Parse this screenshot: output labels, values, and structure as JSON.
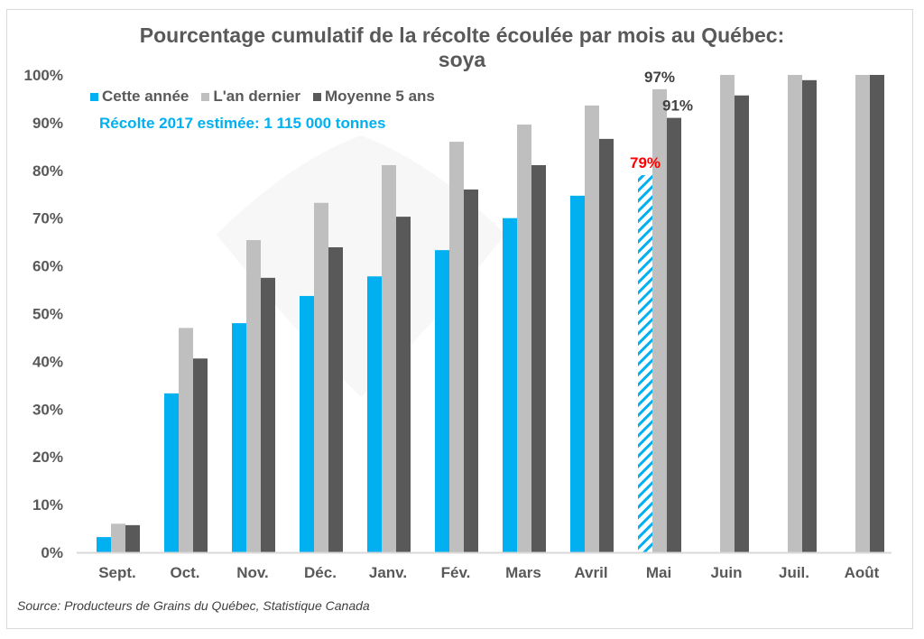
{
  "chart_data": {
    "type": "bar",
    "title": "Pourcentage cumulatif de la récolte écoulée par mois au Québec:",
    "subtitle": "soya",
    "xlabel": "",
    "ylabel": "",
    "ylim": [
      0,
      100
    ],
    "yticks": [
      "0%",
      "10%",
      "20%",
      "30%",
      "40%",
      "50%",
      "60%",
      "70%",
      "80%",
      "90%",
      "100%"
    ],
    "grid": false,
    "legend_position": "top-left",
    "categories": [
      "Sept.",
      "Oct.",
      "Nov.",
      "Déc.",
      "Janv.",
      "Fév.",
      "Mars",
      "Avril",
      "Mai",
      "Juin",
      "Juil.",
      "Août"
    ],
    "series": [
      {
        "name": "Cette année",
        "color": "#00b0f0",
        "values": [
          3.2,
          33.3,
          48,
          53.7,
          57.8,
          63.3,
          70,
          74.7,
          79,
          null,
          null,
          null
        ],
        "hatched_index": 8
      },
      {
        "name": "L'an dernier",
        "color": "#bfbfbf",
        "values": [
          6,
          47,
          65.4,
          73.2,
          81.1,
          86,
          89.6,
          93.6,
          97,
          100,
          100,
          100
        ]
      },
      {
        "name": "Moyenne 5 ans",
        "color": "#595959",
        "values": [
          5.7,
          40.6,
          57.5,
          63.9,
          70.3,
          76,
          81.1,
          86.6,
          91,
          95.7,
          98.9,
          100
        ]
      }
    ],
    "annotations": [
      {
        "text": "79%",
        "category": "Mai",
        "series": "Cette année",
        "color": "#ff0000"
      },
      {
        "text": "97%",
        "category": "Mai",
        "series": "L'an dernier",
        "color": "#404040"
      },
      {
        "text": "91%",
        "category": "Mai",
        "series": "Moyenne 5 ans",
        "color": "#404040"
      }
    ],
    "note": "Récolte 2017 estimée: 1 115 000 tonnes",
    "source": "Source: Producteurs de Grains du Québec, Statistique Canada"
  }
}
